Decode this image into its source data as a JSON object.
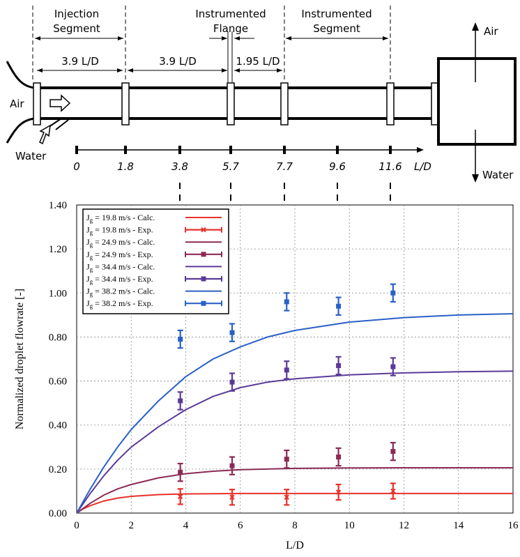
{
  "schematic": {
    "segments": [
      {
        "line1": "Injection",
        "line2": "Segment"
      },
      {
        "line1": "Instrumented",
        "line2": "Flange"
      },
      {
        "line1": "Instrumented",
        "line2": "Segment"
      }
    ],
    "distances": [
      "3.9 L/D",
      "3.9 L/D",
      "1.95 L/D"
    ],
    "air_in": "Air",
    "water_in": "Water",
    "air_out": "Air",
    "water_out": "Water",
    "scale_ticks": [
      "0",
      "1.8",
      "3.8",
      "5.7",
      "7.7",
      "9.6",
      "11.6"
    ],
    "scale_unit": "L/D"
  },
  "chart_data": {
    "type": "line",
    "xlabel": "L/D",
    "ylabel": "Normalized droplet flowrate [-]",
    "xlim": [
      0,
      16
    ],
    "ylim": [
      0,
      1.4
    ],
    "xticks": [
      "0",
      "2",
      "4",
      "6",
      "8",
      "10",
      "12",
      "14",
      "16"
    ],
    "yticks": [
      "0.00",
      "0.20",
      "0.40",
      "0.60",
      "0.80",
      "1.00",
      "1.20",
      "1.40"
    ],
    "grid": true,
    "legend_position": "top-left",
    "series": [
      {
        "name": "Jg = 19.8 m/s - Calc.",
        "kind": "calc",
        "color": "#e8302a",
        "x": [
          0,
          0.25,
          0.5,
          1,
          1.5,
          2,
          3,
          4,
          5,
          6,
          8,
          10,
          12,
          14,
          16
        ],
        "y": [
          0,
          0.02,
          0.034,
          0.055,
          0.068,
          0.076,
          0.084,
          0.087,
          0.088,
          0.089,
          0.089,
          0.089,
          0.089,
          0.089,
          0.089
        ]
      },
      {
        "name": "Jg = 19.8 m/s - Exp.",
        "kind": "exp",
        "color": "#e8302a",
        "marker": "x",
        "x": [
          3.8,
          5.7,
          7.7,
          9.6,
          11.6
        ],
        "y": [
          0.075,
          0.072,
          0.072,
          0.095,
          0.1
        ],
        "err": [
          0.035,
          0.035,
          0.035,
          0.035,
          0.035
        ]
      },
      {
        "name": "Jg = 24.9 m/s - Calc.",
        "kind": "calc",
        "color": "#8b2a55",
        "x": [
          0,
          0.5,
          1,
          1.5,
          2,
          3,
          4,
          5,
          6,
          8,
          10,
          12,
          14,
          16
        ],
        "y": [
          0,
          0.045,
          0.082,
          0.11,
          0.13,
          0.16,
          0.179,
          0.19,
          0.197,
          0.203,
          0.205,
          0.206,
          0.206,
          0.206
        ]
      },
      {
        "name": "Jg = 24.9 m/s - Exp.",
        "kind": "exp",
        "color": "#8b2a55",
        "marker": "square",
        "x": [
          3.8,
          5.7,
          7.7,
          9.6,
          11.6
        ],
        "y": [
          0.185,
          0.215,
          0.245,
          0.255,
          0.28
        ],
        "err": [
          0.04,
          0.04,
          0.04,
          0.04,
          0.04
        ]
      },
      {
        "name": "Jg = 34.4 m/s - Calc.",
        "kind": "calc",
        "color": "#5a3a98",
        "x": [
          0,
          0.5,
          1,
          1.5,
          2,
          3,
          4,
          5,
          6,
          7,
          8,
          10,
          12,
          14,
          16
        ],
        "y": [
          0,
          0.09,
          0.17,
          0.24,
          0.3,
          0.392,
          0.47,
          0.53,
          0.57,
          0.595,
          0.61,
          0.628,
          0.637,
          0.642,
          0.645
        ]
      },
      {
        "name": "Jg = 34.4 m/s - Exp.",
        "kind": "exp",
        "color": "#5a3a98",
        "marker": "square",
        "x": [
          3.8,
          5.7,
          7.7,
          9.6,
          11.6
        ],
        "y": [
          0.51,
          0.595,
          0.65,
          0.67,
          0.665
        ],
        "err": [
          0.04,
          0.04,
          0.04,
          0.04,
          0.04
        ]
      },
      {
        "name": "Jg = 38.2 m/s - Calc.",
        "kind": "calc",
        "color": "#2a60c8",
        "x": [
          0,
          0.5,
          1,
          1.5,
          2,
          3,
          4,
          5,
          6,
          7,
          8,
          10,
          12,
          14,
          16
        ],
        "y": [
          0,
          0.11,
          0.21,
          0.3,
          0.38,
          0.51,
          0.62,
          0.7,
          0.755,
          0.8,
          0.83,
          0.868,
          0.888,
          0.9,
          0.906
        ]
      },
      {
        "name": "Jg = 38.2 m/s - Exp.",
        "kind": "exp",
        "color": "#2a60c8",
        "marker": "square",
        "x": [
          3.8,
          5.7,
          7.7,
          9.6,
          11.6
        ],
        "y": [
          0.79,
          0.82,
          0.96,
          0.94,
          1.0
        ],
        "err": [
          0.04,
          0.04,
          0.04,
          0.04,
          0.04
        ]
      }
    ]
  }
}
